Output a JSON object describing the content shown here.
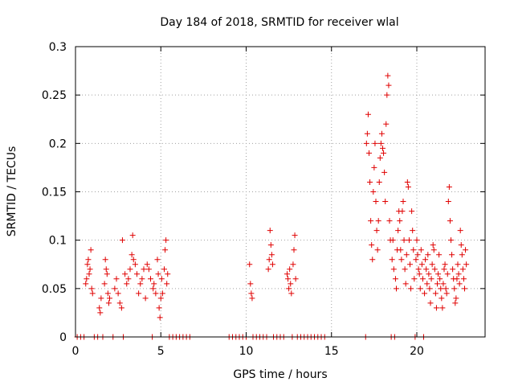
{
  "chart_data": {
    "type": "scatter",
    "title": "Day 184 of 2018, SRMTID for receiver wlal",
    "xlabel": "GPS time / hours",
    "ylabel": "SRMTID / TECUs",
    "xlim": [
      0,
      24
    ],
    "ylim": [
      0,
      0.3
    ],
    "x_ticks": [
      0,
      5,
      10,
      15,
      20
    ],
    "x_tick_labels": [
      "0",
      "5",
      "10",
      "15",
      "20"
    ],
    "y_ticks": [
      0,
      0.05,
      0.1,
      0.15,
      0.2,
      0.25,
      0.3
    ],
    "y_tick_labels": [
      "0",
      "0.05",
      "0.1",
      "0.15",
      "0.2",
      "0.25",
      "0.3"
    ],
    "grid": true,
    "marker": "plus",
    "series": [
      {
        "name": "SRMTID",
        "color": "#e00000",
        "points": [
          [
            0.1,
            0
          ],
          [
            0.3,
            0
          ],
          [
            0.5,
            0
          ],
          [
            0.6,
            0.055
          ],
          [
            0.65,
            0.06
          ],
          [
            0.7,
            0.075
          ],
          [
            0.75,
            0.08
          ],
          [
            0.8,
            0.065
          ],
          [
            0.85,
            0.07
          ],
          [
            0.9,
            0.09
          ],
          [
            0.95,
            0.05
          ],
          [
            1.0,
            0.045
          ],
          [
            1.1,
            0
          ],
          [
            1.3,
            0
          ],
          [
            1.4,
            0.03
          ],
          [
            1.45,
            0.025
          ],
          [
            1.5,
            0.04
          ],
          [
            1.6,
            0
          ],
          [
            1.7,
            0.055
          ],
          [
            1.75,
            0.08
          ],
          [
            1.8,
            0.07
          ],
          [
            1.85,
            0.065
          ],
          [
            1.9,
            0.045
          ],
          [
            1.95,
            0.035
          ],
          [
            2.0,
            0.04
          ],
          [
            2.2,
            0
          ],
          [
            2.3,
            0.05
          ],
          [
            2.4,
            0.06
          ],
          [
            2.5,
            0.045
          ],
          [
            2.6,
            0.035
          ],
          [
            2.7,
            0.03
          ],
          [
            2.75,
            0.1
          ],
          [
            2.8,
            0
          ],
          [
            2.9,
            0.065
          ],
          [
            3.0,
            0.055
          ],
          [
            3.1,
            0.06
          ],
          [
            3.2,
            0.07
          ],
          [
            3.3,
            0.085
          ],
          [
            3.35,
            0.105
          ],
          [
            3.4,
            0.08
          ],
          [
            3.5,
            0.075
          ],
          [
            3.6,
            0.065
          ],
          [
            3.7,
            0.045
          ],
          [
            3.8,
            0.055
          ],
          [
            3.9,
            0.06
          ],
          [
            4.0,
            0.07
          ],
          [
            4.1,
            0.04
          ],
          [
            4.2,
            0.075
          ],
          [
            4.3,
            0.07
          ],
          [
            4.4,
            0.06
          ],
          [
            4.5,
            0
          ],
          [
            4.55,
            0.05
          ],
          [
            4.6,
            0.055
          ],
          [
            4.7,
            0.045
          ],
          [
            4.8,
            0.08
          ],
          [
            4.85,
            0.065
          ],
          [
            4.9,
            0.03
          ],
          [
            4.95,
            0.02
          ],
          [
            5.0,
            0.04
          ],
          [
            5.05,
            0.06
          ],
          [
            5.1,
            0.045
          ],
          [
            5.2,
            0.07
          ],
          [
            5.25,
            0.09
          ],
          [
            5.3,
            0.1
          ],
          [
            5.35,
            0.055
          ],
          [
            5.4,
            0.065
          ],
          [
            5.5,
            0
          ],
          [
            5.7,
            0
          ],
          [
            5.9,
            0
          ],
          [
            6.1,
            0
          ],
          [
            6.3,
            0
          ],
          [
            6.5,
            0
          ],
          [
            6.7,
            0
          ],
          [
            9.0,
            0
          ],
          [
            9.2,
            0
          ],
          [
            9.4,
            0
          ],
          [
            9.6,
            0
          ],
          [
            9.8,
            0
          ],
          [
            10.0,
            0
          ],
          [
            10.2,
            0.075
          ],
          [
            10.25,
            0.055
          ],
          [
            10.3,
            0.045
          ],
          [
            10.35,
            0.04
          ],
          [
            10.4,
            0
          ],
          [
            10.6,
            0
          ],
          [
            10.8,
            0
          ],
          [
            11.0,
            0
          ],
          [
            11.2,
            0
          ],
          [
            11.3,
            0.07
          ],
          [
            11.35,
            0.08
          ],
          [
            11.4,
            0.11
          ],
          [
            11.45,
            0.095
          ],
          [
            11.5,
            0.085
          ],
          [
            11.55,
            0.075
          ],
          [
            11.6,
            0
          ],
          [
            11.8,
            0
          ],
          [
            12.0,
            0
          ],
          [
            12.2,
            0
          ],
          [
            12.4,
            0.065
          ],
          [
            12.45,
            0.06
          ],
          [
            12.5,
            0.05
          ],
          [
            12.55,
            0.07
          ],
          [
            12.6,
            0.055
          ],
          [
            12.65,
            0.045
          ],
          [
            12.7,
            0
          ],
          [
            12.75,
            0.075
          ],
          [
            12.8,
            0.09
          ],
          [
            12.85,
            0.105
          ],
          [
            12.9,
            0.06
          ],
          [
            13.0,
            0
          ],
          [
            13.2,
            0
          ],
          [
            13.4,
            0
          ],
          [
            13.6,
            0
          ],
          [
            13.8,
            0
          ],
          [
            14.0,
            0
          ],
          [
            14.2,
            0
          ],
          [
            14.4,
            0
          ],
          [
            14.6,
            0
          ],
          [
            17.0,
            0
          ],
          [
            17.05,
            0.2
          ],
          [
            17.1,
            0.21
          ],
          [
            17.15,
            0.23
          ],
          [
            17.2,
            0.19
          ],
          [
            17.25,
            0.16
          ],
          [
            17.3,
            0.12
          ],
          [
            17.35,
            0.095
          ],
          [
            17.4,
            0.08
          ],
          [
            17.45,
            0.15
          ],
          [
            17.5,
            0.175
          ],
          [
            17.55,
            0.2
          ],
          [
            17.6,
            0.14
          ],
          [
            17.65,
            0.11
          ],
          [
            17.7,
            0.09
          ],
          [
            17.75,
            0.12
          ],
          [
            17.8,
            0.16
          ],
          [
            17.85,
            0.185
          ],
          [
            17.9,
            0.2
          ],
          [
            17.95,
            0.21
          ],
          [
            18.0,
            0.195
          ],
          [
            18.05,
            0.19
          ],
          [
            18.1,
            0.17
          ],
          [
            18.15,
            0.14
          ],
          [
            18.2,
            0.22
          ],
          [
            18.25,
            0.25
          ],
          [
            18.3,
            0.27
          ],
          [
            18.35,
            0.26
          ],
          [
            18.4,
            0.12
          ],
          [
            18.45,
            0.1
          ],
          [
            18.5,
            0
          ],
          [
            18.55,
            0.08
          ],
          [
            18.6,
            0.1
          ],
          [
            18.65,
            0.07
          ],
          [
            18.7,
            0
          ],
          [
            18.75,
            0.06
          ],
          [
            18.8,
            0.05
          ],
          [
            18.85,
            0.09
          ],
          [
            18.9,
            0.11
          ],
          [
            18.95,
            0.13
          ],
          [
            19.0,
            0.12
          ],
          [
            19.05,
            0.09
          ],
          [
            19.1,
            0.08
          ],
          [
            19.15,
            0.13
          ],
          [
            19.2,
            0.14
          ],
          [
            19.25,
            0.1
          ],
          [
            19.3,
            0.07
          ],
          [
            19.35,
            0.055
          ],
          [
            19.4,
            0.085
          ],
          [
            19.45,
            0.16
          ],
          [
            19.5,
            0.155
          ],
          [
            19.55,
            0.1
          ],
          [
            19.6,
            0.075
          ],
          [
            19.65,
            0.05
          ],
          [
            19.7,
            0.13
          ],
          [
            19.75,
            0.11
          ],
          [
            19.8,
            0.09
          ],
          [
            19.85,
            0.06
          ],
          [
            19.9,
            0
          ],
          [
            19.95,
            0.08
          ],
          [
            20.0,
            0.1
          ],
          [
            20.05,
            0.085
          ],
          [
            20.1,
            0.07
          ],
          [
            20.15,
            0.065
          ],
          [
            20.2,
            0.05
          ],
          [
            20.25,
            0.09
          ],
          [
            20.3,
            0.075
          ],
          [
            20.35,
            0.06
          ],
          [
            20.4,
            0
          ],
          [
            20.45,
            0.045
          ],
          [
            20.5,
            0.08
          ],
          [
            20.55,
            0.07
          ],
          [
            20.6,
            0.055
          ],
          [
            20.65,
            0.085
          ],
          [
            20.7,
            0.065
          ],
          [
            20.75,
            0.05
          ],
          [
            20.8,
            0.035
          ],
          [
            20.85,
            0.06
          ],
          [
            20.9,
            0.075
          ],
          [
            20.95,
            0.095
          ],
          [
            21.0,
            0.09
          ],
          [
            21.05,
            0.07
          ],
          [
            21.1,
            0.045
          ],
          [
            21.15,
            0.03
          ],
          [
            21.2,
            0.055
          ],
          [
            21.25,
            0.065
          ],
          [
            21.3,
            0.085
          ],
          [
            21.35,
            0.06
          ],
          [
            21.4,
            0.05
          ],
          [
            21.45,
            0.04
          ],
          [
            21.5,
            0.03
          ],
          [
            21.55,
            0.055
          ],
          [
            21.6,
            0.07
          ],
          [
            21.65,
            0.075
          ],
          [
            21.7,
            0.05
          ],
          [
            21.75,
            0.045
          ],
          [
            21.8,
            0.065
          ],
          [
            21.85,
            0.14
          ],
          [
            21.9,
            0.155
          ],
          [
            21.95,
            0.12
          ],
          [
            22.0,
            0.1
          ],
          [
            22.05,
            0.085
          ],
          [
            22.1,
            0.07
          ],
          [
            22.15,
            0.06
          ],
          [
            22.2,
            0.05
          ],
          [
            22.25,
            0.035
          ],
          [
            22.3,
            0.04
          ],
          [
            22.35,
            0.06
          ],
          [
            22.4,
            0.075
          ],
          [
            22.45,
            0.065
          ],
          [
            22.5,
            0.055
          ],
          [
            22.55,
            0.11
          ],
          [
            22.6,
            0.095
          ],
          [
            22.65,
            0.085
          ],
          [
            22.7,
            0.07
          ],
          [
            22.75,
            0.06
          ],
          [
            22.8,
            0.05
          ],
          [
            22.85,
            0.09
          ],
          [
            22.9,
            0.075
          ]
        ]
      }
    ]
  }
}
